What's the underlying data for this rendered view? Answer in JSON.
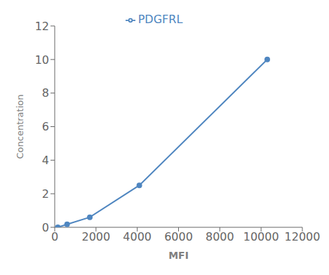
{
  "chart_data": {
    "type": "line",
    "x": [
      150,
      600,
      1700,
      4100,
      10300
    ],
    "series": [
      {
        "name": "PDGFRL",
        "color": "#4f86c0",
        "values": [
          0.0,
          0.18,
          0.6,
          2.5,
          10.0
        ],
        "marker": "circle",
        "line_style": "solid"
      }
    ],
    "xlabel": "MFI",
    "ylabel": "Concentration",
    "xlim": [
      0,
      12000
    ],
    "ylim": [
      0,
      12
    ],
    "xticks": [
      0,
      2000,
      4000,
      6000,
      8000,
      10000,
      12000
    ],
    "yticks": [
      0,
      2,
      4,
      6,
      8,
      10,
      12
    ],
    "grid": false,
    "legend": "upper center"
  }
}
